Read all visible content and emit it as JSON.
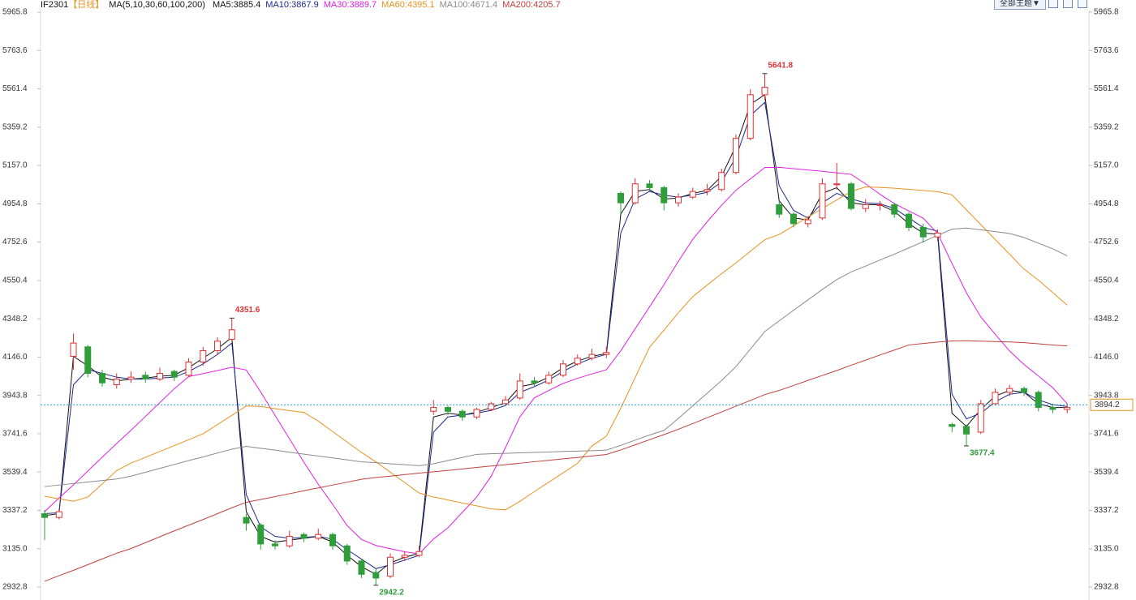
{
  "ui": {
    "symbol": "IF2301",
    "period": "【日线】",
    "indicator": "MA(5,10,30,60,100,200)",
    "theme_button": "全部主题▼"
  },
  "chart_data": {
    "type": "candlestick",
    "ylim": [
      2932.8,
      5965.8
    ],
    "yticks": [
      2932.8,
      {
        "value": 3135,
        "label": "3135.0"
      },
      3337.2,
      3539.4,
      3741.6,
      3943.8,
      {
        "value": 4146,
        "label": "4146.0"
      },
      4348.2,
      4550.4,
      4752.6,
      4954.8,
      {
        "value": 5157,
        "label": "5157.0"
      },
      5359.2,
      5561.4,
      5763.6,
      5965.8
    ],
    "up_color": "#e03030",
    "down_color": "#2e9d3a",
    "open": [
      3320,
      3300,
      4150,
      4200,
      4060,
      4000,
      4030,
      4050,
      4030,
      4070,
      4050,
      4120,
      4180,
      4240,
      3300,
      3260,
      3160,
      3150,
      3210,
      3190,
      3210,
      3150,
      3070,
      3010,
      2990,
      3090,
      3100,
      3860,
      3880,
      3860,
      3830,
      3870,
      3900,
      3930,
      4020,
      4010,
      4050,
      4110,
      4140,
      4160,
      5010,
      4960,
      5060,
      5040,
      4960,
      4990,
      5020,
      5030,
      5120,
      5300,
      5530,
      4950,
      4900,
      4850,
      4880,
      5060,
      5060,
      4930,
      4950,
      4950,
      4900,
      4830,
      4780,
      3790,
      3780,
      3750,
      3900,
      3960,
      3980,
      3960,
      3880,
      3870
    ],
    "high": [
      3340,
      3345,
      4270,
      4210,
      4080,
      4060,
      4070,
      4070,
      4090,
      4080,
      4140,
      4200,
      4250,
      4351.6,
      3320,
      3270,
      3180,
      3230,
      3220,
      3240,
      3220,
      3160,
      3080,
      3030,
      3110,
      3120,
      3150,
      3920,
      3890,
      3870,
      3880,
      3910,
      3940,
      4060,
      4040,
      4070,
      4130,
      4160,
      4190,
      4200,
      5020,
      5090,
      5080,
      5050,
      5010,
      5040,
      5060,
      5140,
      5320,
      5560,
      5641.8,
      4970,
      4910,
      4890,
      5090,
      5170,
      5070,
      4980,
      4970,
      4960,
      4910,
      4850,
      4820,
      3800,
      3790,
      3920,
      3980,
      4000,
      3990,
      3970,
      3900,
      3900
    ],
    "low": [
      3180,
      3290,
      4080,
      4040,
      3990,
      3980,
      4010,
      4010,
      4020,
      4020,
      4040,
      4100,
      4160,
      4230,
      3230,
      3130,
      3130,
      3140,
      3170,
      3180,
      3130,
      3050,
      2980,
      2942.2,
      2980,
      3070,
      3090,
      3840,
      3840,
      3810,
      3820,
      3860,
      3890,
      3920,
      3990,
      4000,
      4040,
      4100,
      4130,
      4140,
      4900,
      4950,
      5020,
      4920,
      4940,
      4980,
      5000,
      5020,
      5110,
      5290,
      5500,
      4880,
      4830,
      4830,
      4870,
      5030,
      4920,
      4910,
      4920,
      4880,
      4810,
      4750,
      4760,
      3750,
      3677.4,
      3740,
      3890,
      3940,
      3940,
      3860,
      3850,
      3850
    ],
    "close": [
      3300,
      3330,
      4220,
      4060,
      4010,
      4030,
      4040,
      4030,
      4060,
      4040,
      4120,
      4180,
      4230,
      4290,
      3270,
      3160,
      3150,
      3200,
      3190,
      3210,
      3150,
      3070,
      3000,
      2980,
      3090,
      3100,
      3120,
      3880,
      3860,
      3830,
      3870,
      3900,
      3920,
      4020,
      4010,
      4050,
      4110,
      4140,
      4160,
      4170,
      4960,
      5060,
      5040,
      4960,
      4990,
      5020,
      5030,
      5120,
      5300,
      5530,
      5570,
      4900,
      4850,
      4870,
      5060,
      5060,
      4930,
      4950,
      4950,
      4900,
      4830,
      4780,
      4800,
      3780,
      3740,
      3900,
      3960,
      3980,
      3960,
      3880,
      3870,
      3880
    ],
    "series": [
      {
        "name": "MA5:3885.4",
        "color": "#111111",
        "values": [
          3310,
          3320,
          4150,
          4100,
          4040,
          4020,
          4030,
          4035,
          4045,
          4050,
          4090,
          4140,
          4190,
          4250,
          3330,
          3200,
          3170,
          3180,
          3190,
          3200,
          3170,
          3100,
          3040,
          3000,
          3060,
          3090,
          3110,
          3830,
          3850,
          3840,
          3855,
          3880,
          3905,
          3990,
          4005,
          4040,
          4090,
          4125,
          4150,
          4165,
          4900,
          5020,
          5030,
          4980,
          4985,
          5010,
          5025,
          5100,
          5260,
          5480,
          5530,
          4970,
          4880,
          4870,
          5010,
          5040,
          4960,
          4950,
          4950,
          4915,
          4850,
          4800,
          4795,
          3850,
          3780,
          3870,
          3940,
          3970,
          3960,
          3900,
          3880,
          3880
        ]
      },
      {
        "name": "MA10:3867.9",
        "color": "#1c2a8c",
        "values": [
          3320,
          3325,
          4000,
          4080,
          4060,
          4040,
          4030,
          4030,
          4035,
          4040,
          4070,
          4110,
          4160,
          4220,
          3420,
          3250,
          3200,
          3190,
          3195,
          3200,
          3185,
          3130,
          3080,
          3030,
          3050,
          3075,
          3100,
          3750,
          3830,
          3840,
          3850,
          3865,
          3890,
          3960,
          3990,
          4025,
          4070,
          4110,
          4140,
          4160,
          4800,
          4980,
          5020,
          5000,
          4990,
          5000,
          5015,
          5070,
          5200,
          5420,
          5490,
          5050,
          4920,
          4880,
          4960,
          5010,
          4980,
          4960,
          4955,
          4930,
          4880,
          4830,
          4810,
          3950,
          3820,
          3850,
          3910,
          3950,
          3960,
          3920,
          3895,
          3885
        ]
      },
      {
        "name": "MA30:3889.7",
        "color": "#e020e0",
        "values": [
          3330,
          3403,
          3472,
          3545,
          3618,
          3690,
          3760,
          3833,
          3906,
          3979,
          4043,
          4059,
          4075,
          4092,
          4078,
          3962,
          3838,
          3715,
          3591,
          3475,
          3369,
          3257,
          3184,
          3152,
          3135,
          3119,
          3108,
          3186,
          3245,
          3327,
          3408,
          3517,
          3669,
          3831,
          3931,
          3970,
          4007,
          4034,
          4057,
          4079,
          4179,
          4295,
          4411,
          4528,
          4651,
          4767,
          4860,
          4947,
          5026,
          5086,
          5146,
          5147,
          5140,
          5133,
          5126,
          5118,
          5110,
          5060,
          5005,
          4956,
          4917,
          4879,
          4799,
          4640,
          4485,
          4358,
          4266,
          4178,
          4107,
          4046,
          3984,
          3900
        ]
      },
      {
        "name": "MA60:4395.1",
        "color": "#e8921e",
        "values": [
          3412,
          3398,
          3385,
          3408,
          3477,
          3547,
          3587,
          3617,
          3648,
          3679,
          3710,
          3741,
          3790,
          3839,
          3888,
          3885,
          3874,
          3864,
          3854,
          3808,
          3753,
          3698,
          3643,
          3593,
          3539,
          3484,
          3429,
          3408,
          3392,
          3376,
          3361,
          3345,
          3340,
          3385,
          3436,
          3486,
          3535,
          3585,
          3677,
          3729,
          3876,
          4038,
          4198,
          4288,
          4380,
          4465,
          4526,
          4586,
          4643,
          4704,
          4765,
          4793,
          4839,
          4885,
          4930,
          4975,
          5020,
          5044,
          5041,
          5037,
          5031,
          5025,
          5019,
          5002,
          4923,
          4845,
          4766,
          4689,
          4610,
          4552,
          4486,
          4420
        ]
      },
      {
        "name": "MA100:4671.4",
        "color": "#8a8a8a",
        "values": [
          3463,
          3471,
          3479,
          3487,
          3495,
          3503,
          3518,
          3538,
          3559,
          3579,
          3600,
          3619,
          3640,
          3660,
          3675,
          3665,
          3655,
          3644,
          3634,
          3624,
          3614,
          3604,
          3593,
          3589,
          3583,
          3578,
          3573,
          3583,
          3600,
          3616,
          3633,
          3636,
          3638,
          3641,
          3643,
          3645,
          3648,
          3650,
          3652,
          3655,
          3680,
          3708,
          3735,
          3759,
          3822,
          3889,
          3955,
          4022,
          4096,
          4188,
          4281,
          4337,
          4393,
          4448,
          4503,
          4555,
          4595,
          4626,
          4658,
          4689,
          4722,
          4755,
          4788,
          4821,
          4827,
          4817,
          4808,
          4798,
          4777,
          4747,
          4717,
          4680
        ]
      },
      {
        "name": "MA200:4205.7",
        "color": "#c0403c",
        "values": [
          2963,
          2993,
          3021,
          3051,
          3081,
          3111,
          3136,
          3167,
          3198,
          3229,
          3259,
          3289,
          3320,
          3351,
          3380,
          3395,
          3410,
          3425,
          3441,
          3456,
          3471,
          3486,
          3501,
          3511,
          3518,
          3526,
          3534,
          3541,
          3548,
          3556,
          3564,
          3571,
          3578,
          3586,
          3594,
          3601,
          3609,
          3616,
          3624,
          3632,
          3656,
          3683,
          3710,
          3737,
          3765,
          3795,
          3826,
          3856,
          3887,
          3917,
          3948,
          3970,
          3996,
          4023,
          4049,
          4075,
          4103,
          4130,
          4157,
          4183,
          4210,
          4218,
          4225,
          4231,
          4232,
          4230,
          4228,
          4226,
          4222,
          4216,
          4210,
          4205
        ]
      }
    ],
    "annotations": [
      "4351.6",
      "2942.2",
      "5641.8",
      "3677.4"
    ],
    "last_price": 3894.2
  }
}
